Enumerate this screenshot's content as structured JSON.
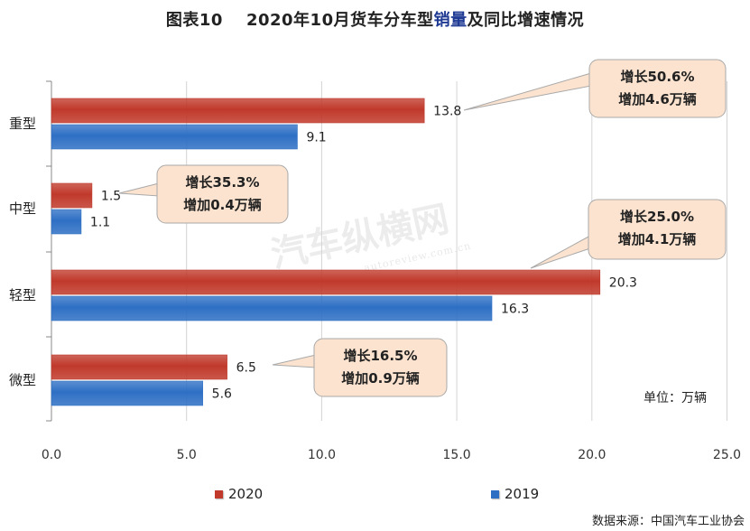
{
  "title": {
    "figure_no": "图表10",
    "main": "2020年10月货车分车型",
    "highlight": "销量",
    "suffix": "及同比增速情况"
  },
  "chart_data": {
    "type": "bar",
    "orientation": "horizontal",
    "categories": [
      "重型",
      "中型",
      "轻型",
      "微型"
    ],
    "series": [
      {
        "name": "2020",
        "values": [
          13.8,
          1.5,
          20.3,
          6.5
        ],
        "color": "#c0392b"
      },
      {
        "name": "2019",
        "values": [
          9.1,
          1.1,
          16.3,
          5.6
        ],
        "color": "#2e6fc4"
      }
    ],
    "xlim": [
      0,
      25
    ],
    "xticks": [
      "0.0",
      "5.0",
      "10.0",
      "15.0",
      "20.0",
      "25.0"
    ],
    "unit": "单位：万辆",
    "legend": "bottom",
    "grid": true,
    "annotations": [
      {
        "category": "重型",
        "line1": "增长50.6%",
        "line2": "增加4.6万辆"
      },
      {
        "category": "中型",
        "line1": "增长35.3%",
        "line2": "增加0.4万辆"
      },
      {
        "category": "轻型",
        "line1": "增长25.0%",
        "line2": "增加4.1万辆"
      },
      {
        "category": "微型",
        "line1": "增长16.5%",
        "line2": "增加0.9万辆"
      }
    ]
  },
  "source": "数据来源：中国汽车工业协会",
  "watermark": "汽车纵横网",
  "watermark_sub": "autoreview.com.cn",
  "colors": {
    "bar_2020": "#c0392b",
    "bar_2019": "#2e6fc4",
    "callout_fill": "#fbe3cf",
    "callout_stroke": "#a9a9a9",
    "title_highlight": "#1f3a93"
  }
}
